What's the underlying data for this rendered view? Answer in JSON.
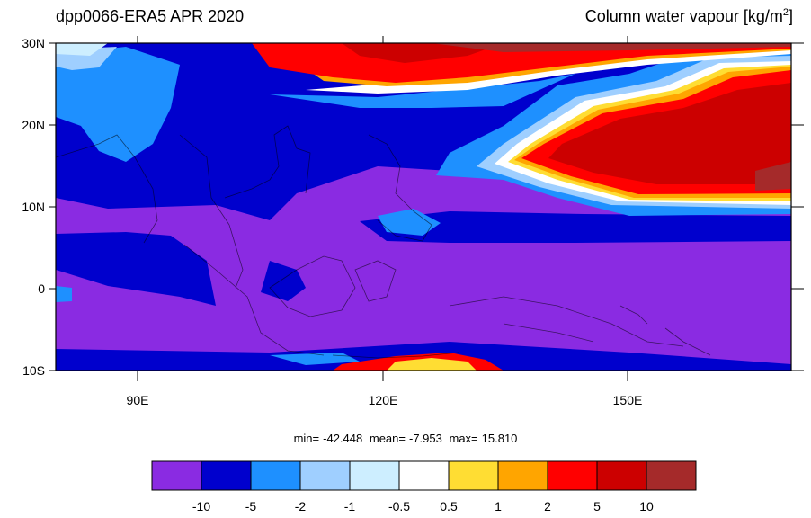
{
  "title_left": "dpp0066-ERA5  APR 2020",
  "title_right": "Column water vapour [kg/m",
  "title_right_sup": "2",
  "title_right_end": "]",
  "lat_labels": [
    "30N",
    "20N",
    "10N",
    "0",
    "10S"
  ],
  "lon_labels": [
    "90E",
    "120E",
    "150E"
  ],
  "stats": {
    "min_label": "min=",
    "min": "-42.448",
    "mean_label": "mean=",
    "mean": "-7.953",
    "max_label": "max=",
    "max": "15.810"
  },
  "colorbar": {
    "colors": [
      "#8a2be2",
      "#0000cd",
      "#1e90ff",
      "#9fcfff",
      "#cdeeff",
      "#ffffff",
      "#ffdd33",
      "#ffa500",
      "#ff0000",
      "#cc0000",
      "#a52a2a"
    ],
    "labels": [
      "-10",
      "-5",
      "-2",
      "-1",
      "-0.5",
      "0.5",
      "1",
      "2",
      "5",
      "10"
    ]
  }
}
